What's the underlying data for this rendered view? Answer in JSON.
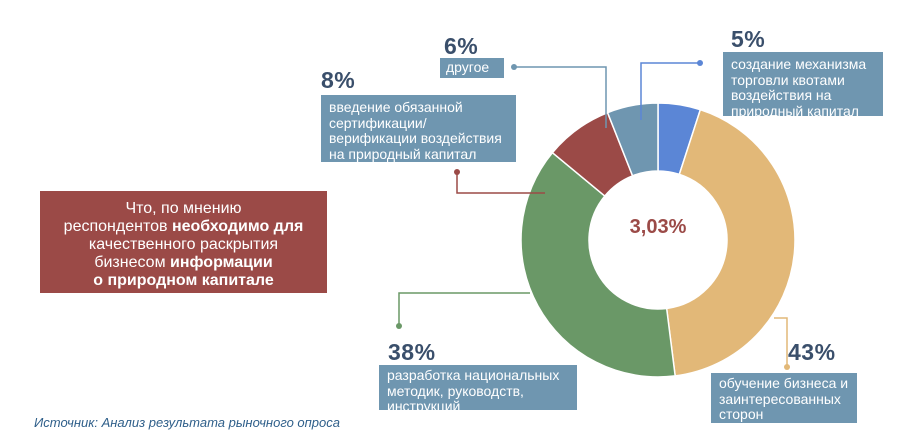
{
  "chart_data": {
    "type": "pie",
    "variant": "donut",
    "center_label": "3,03%",
    "slices": [
      {
        "key": "s5",
        "value": 5,
        "value_label": "5%",
        "label": "создание механизма торговли квотами воздействия на природный капитал",
        "color": "#5b86d6"
      },
      {
        "key": "s43",
        "value": 43,
        "value_label": "43%",
        "label": "обучение бизнеса и заинтересованных сторон",
        "color": "#e2b878"
      },
      {
        "key": "s38",
        "value": 38,
        "value_label": "38%",
        "label": "разработка национальных методик, руководств, инструкций",
        "color": "#6a9867"
      },
      {
        "key": "s8",
        "value": 8,
        "value_label": "8%",
        "label": "введение обязанной сертификации/ верификации воздействия на природный капитал",
        "color": "#9b4a47"
      },
      {
        "key": "s6",
        "value": 6,
        "value_label": "6%",
        "label": "другое",
        "color": "#6f96b0"
      }
    ]
  },
  "question": {
    "line1": "Что, по мнению",
    "line2_plain": "респондентов ",
    "line2_bold": "необходимо для",
    "line3": "качественного раскрытия",
    "line4_plain": "бизнесом ",
    "line4_bold": "информации",
    "line5_bold": "о природном капитале"
  },
  "labels": {
    "s5_text": [
      "создание механизма",
      "торговли квотами",
      "воздействия на",
      "природный капитал"
    ],
    "s43_text": [
      "обучение бизнеса и",
      "заинтересованных",
      "сторон"
    ],
    "s38_text": [
      "разработка национальных",
      "методик, руководств,",
      "инструкций"
    ],
    "s8_text": [
      "введение обязанной",
      "сертификации/",
      "верификации воздействия",
      "на природный капитал"
    ],
    "s6_text": [
      "другое"
    ]
  },
  "source": "Источник: Анализ результата рыночного опроса",
  "colors": {
    "label_box": "#6f96b0",
    "question_box": "#9b4a47",
    "percent_text": "#3a4f6b"
  }
}
